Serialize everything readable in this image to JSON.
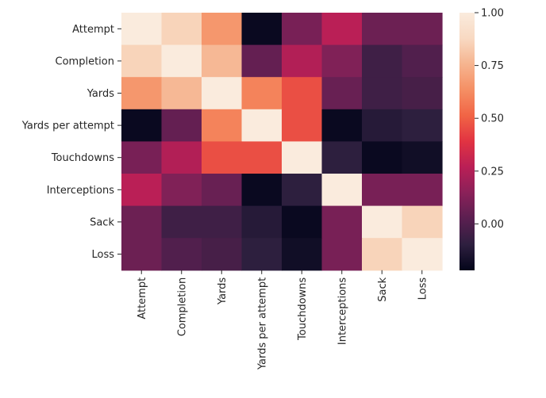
{
  "chart_data": {
    "type": "heatmap",
    "title": "",
    "xlabel": "",
    "ylabel": "",
    "categories": [
      "Attempt",
      "Completion",
      "Yards",
      "Yards per attempt",
      "Touchdowns",
      "Interceptions",
      "Sack",
      "Loss"
    ],
    "values": [
      [
        1.0,
        0.86,
        0.66,
        -0.2,
        0.1,
        0.27,
        0.07,
        0.07
      ],
      [
        0.86,
        1.0,
        0.77,
        0.05,
        0.25,
        0.12,
        -0.05,
        0.0
      ],
      [
        0.66,
        0.77,
        1.0,
        0.6,
        0.46,
        0.06,
        -0.05,
        -0.03
      ],
      [
        -0.2,
        0.05,
        0.6,
        1.0,
        0.46,
        -0.2,
        -0.12,
        -0.1
      ],
      [
        0.1,
        0.25,
        0.46,
        0.46,
        1.0,
        -0.1,
        -0.2,
        -0.18
      ],
      [
        0.27,
        0.12,
        0.06,
        -0.2,
        -0.1,
        1.0,
        0.1,
        0.1
      ],
      [
        0.07,
        -0.05,
        -0.05,
        -0.12,
        -0.2,
        0.1,
        1.0,
        0.86
      ],
      [
        0.07,
        0.0,
        -0.03,
        -0.1,
        -0.18,
        0.1,
        0.86,
        1.0
      ]
    ],
    "colorbar": {
      "min": -0.22,
      "max": 1.0,
      "ticks": [
        0.0,
        0.25,
        0.5,
        0.75,
        1.0
      ],
      "tick_labels": [
        "0.00",
        "0.25",
        "0.50",
        "0.75",
        "1.00"
      ],
      "colormap": "rocket",
      "colors": [
        "#03051a",
        "#2e1f3f",
        "#5a1f50",
        "#8a2159",
        "#b91f56",
        "#e13342",
        "#f16445",
        "#f58f64",
        "#f6b48f",
        "#f8d9c2",
        "#faebdd"
      ]
    },
    "grid": false
  }
}
